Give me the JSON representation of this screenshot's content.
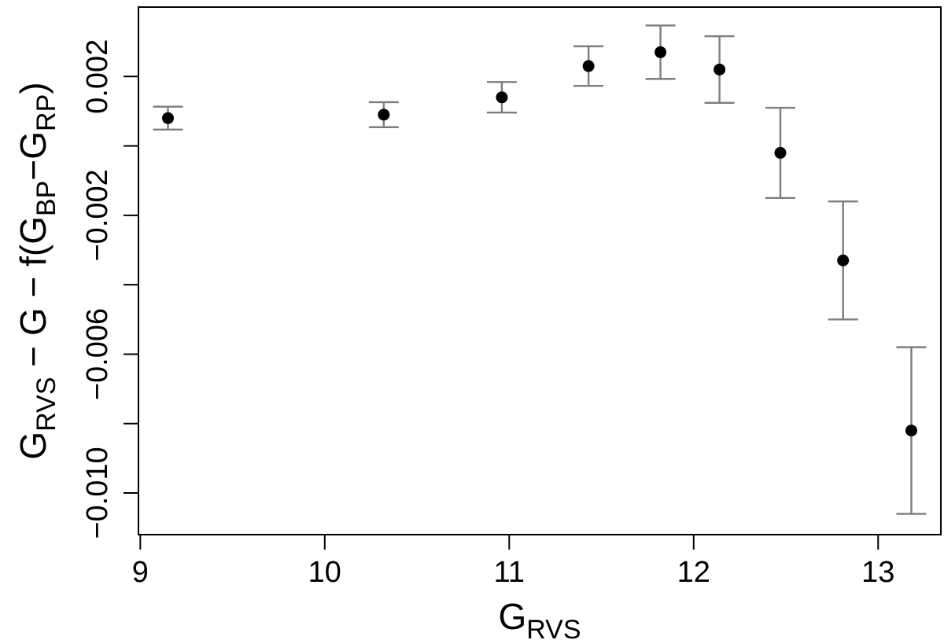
{
  "page": {
    "background": "#ffffff"
  },
  "chart_data": {
    "type": "scatter",
    "title": "",
    "xlabel": "G_RVS",
    "ylabel": "G_RVS − G − f(G_BP−G_RP)",
    "xlabel_parts": [
      {
        "t": "G",
        "sub": false
      },
      {
        "t": "RVS",
        "sub": true
      }
    ],
    "ylabel_parts": [
      {
        "t": "G",
        "sub": false
      },
      {
        "t": "RVS",
        "sub": true
      },
      {
        "t": " − G − f(G",
        "sub": false
      },
      {
        "t": "BP",
        "sub": true
      },
      {
        "t": "−G",
        "sub": false
      },
      {
        "t": "RP",
        "sub": true
      },
      {
        "t": ")",
        "sub": false
      }
    ],
    "xlim": [
      8.99,
      13.34
    ],
    "ylim": [
      -0.0112,
      0.004
    ],
    "grid": false,
    "legend": "none",
    "x_ticks": [
      {
        "value": 9,
        "label": "9"
      },
      {
        "value": 10,
        "label": "10"
      },
      {
        "value": 11,
        "label": "11"
      },
      {
        "value": 12,
        "label": "12"
      },
      {
        "value": 13,
        "label": "13"
      }
    ],
    "y_ticks": [
      {
        "value": 0.002,
        "label": "0.002"
      },
      {
        "value": 0.0,
        "label": ""
      },
      {
        "value": -0.002,
        "label": "−0.002"
      },
      {
        "value": -0.004,
        "label": ""
      },
      {
        "value": -0.006,
        "label": "−0.006"
      },
      {
        "value": -0.008,
        "label": ""
      },
      {
        "value": -0.01,
        "label": "−0.010"
      }
    ],
    "series": [
      {
        "name": "binned-residuals",
        "marker": "filled-circle",
        "points": [
          {
            "x": 9.15,
            "y": 0.0008,
            "err": 0.00033
          },
          {
            "x": 10.32,
            "y": 0.0009,
            "err": 0.00036
          },
          {
            "x": 10.96,
            "y": 0.0014,
            "err": 0.00044
          },
          {
            "x": 11.43,
            "y": 0.0023,
            "err": 0.00057
          },
          {
            "x": 11.82,
            "y": 0.0027,
            "err": 0.00077
          },
          {
            "x": 12.14,
            "y": 0.0022,
            "err": 0.00096
          },
          {
            "x": 12.47,
            "y": -0.0002,
            "err": 0.0013
          },
          {
            "x": 12.81,
            "y": -0.0033,
            "err": 0.0017
          },
          {
            "x": 13.18,
            "y": -0.0082,
            "err": 0.0024
          }
        ]
      }
    ],
    "colors": {
      "marker": "#000000",
      "error_bar": "#7d7d7d",
      "axis": "#000000",
      "text": "#000000"
    }
  }
}
